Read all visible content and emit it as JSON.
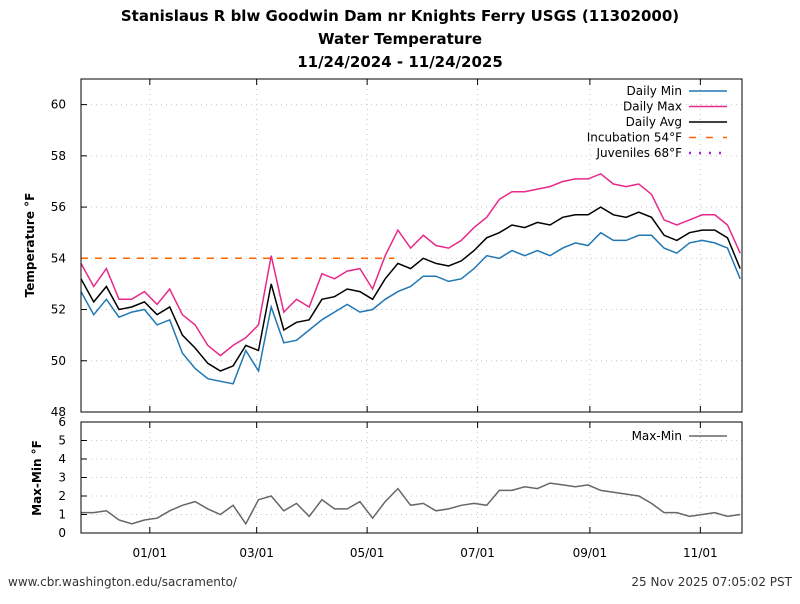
{
  "chart_data": {
    "type": "line",
    "title": [
      "Stanislaus R blw Goodwin Dam nr Knights Ferry USGS (11302000)",
      "Water Temperature",
      "11/24/2024 - 11/24/2025"
    ],
    "x_unit": "days since 11/24/2024",
    "xlim": [
      0,
      365
    ],
    "x_ticks": [
      {
        "day": 38,
        "label": "01/01"
      },
      {
        "day": 97,
        "label": "03/01"
      },
      {
        "day": 158,
        "label": "05/01"
      },
      {
        "day": 219,
        "label": "07/01"
      },
      {
        "day": 281,
        "label": "09/01"
      },
      {
        "day": 342,
        "label": "11/01"
      }
    ],
    "panels": [
      {
        "ylabel": "Temperature °F",
        "ylim": [
          48,
          61
        ],
        "y_ticks": [
          "48",
          "50",
          "52",
          "54",
          "56",
          "58",
          "60"
        ],
        "legend_position": "top-right",
        "x": [
          0,
          7,
          14,
          21,
          28,
          35,
          42,
          49,
          56,
          63,
          70,
          77,
          84,
          91,
          98,
          105,
          112,
          119,
          126,
          133,
          140,
          147,
          154,
          161,
          168,
          175,
          182,
          189,
          196,
          203,
          210,
          217,
          224,
          231,
          238,
          245,
          252,
          259,
          266,
          273,
          280,
          287,
          294,
          301,
          308,
          315,
          322,
          329,
          336,
          343,
          350,
          357,
          364
        ],
        "series": [
          {
            "name": "Daily Min",
            "color": "#1f77b4",
            "style": "solid",
            "values": [
              52.7,
              51.8,
              52.4,
              51.7,
              51.9,
              52.0,
              51.4,
              51.6,
              50.3,
              49.7,
              49.3,
              49.2,
              49.1,
              50.4,
              49.6,
              52.1,
              50.7,
              50.8,
              51.2,
              51.6,
              51.9,
              52.2,
              51.9,
              52.0,
              52.4,
              52.7,
              52.9,
              53.3,
              53.3,
              53.1,
              53.2,
              53.6,
              54.1,
              54.0,
              54.3,
              54.1,
              54.3,
              54.1,
              54.4,
              54.6,
              54.5,
              55.0,
              54.7,
              54.7,
              54.9,
              54.9,
              54.4,
              54.2,
              54.6,
              54.7,
              54.6,
              54.4,
              53.2
            ]
          },
          {
            "name": "Daily Max",
            "color": "#e7298a",
            "style": "solid",
            "values": [
              53.8,
              52.9,
              53.6,
              52.4,
              52.4,
              52.7,
              52.2,
              52.8,
              51.8,
              51.4,
              50.6,
              50.2,
              50.6,
              50.9,
              51.4,
              54.1,
              51.9,
              52.4,
              52.1,
              53.4,
              53.2,
              53.5,
              53.6,
              52.8,
              54.1,
              55.1,
              54.4,
              54.9,
              54.5,
              54.4,
              54.7,
              55.2,
              55.6,
              56.3,
              56.6,
              56.6,
              56.7,
              56.8,
              57.0,
              57.1,
              57.1,
              57.3,
              56.9,
              56.8,
              56.9,
              56.5,
              55.5,
              55.3,
              55.5,
              55.7,
              55.7,
              55.3,
              54.2
            ]
          },
          {
            "name": "Daily Avg",
            "color": "#000000",
            "style": "solid",
            "values": [
              53.2,
              52.3,
              52.9,
              52.0,
              52.1,
              52.3,
              51.8,
              52.1,
              51.0,
              50.5,
              49.9,
              49.6,
              49.8,
              50.6,
              50.4,
              53.0,
              51.2,
              51.5,
              51.6,
              52.4,
              52.5,
              52.8,
              52.7,
              52.4,
              53.2,
              53.8,
              53.6,
              54.0,
              53.8,
              53.7,
              53.9,
              54.3,
              54.8,
              55.0,
              55.3,
              55.2,
              55.4,
              55.3,
              55.6,
              55.7,
              55.7,
              56.0,
              55.7,
              55.6,
              55.8,
              55.6,
              54.9,
              54.7,
              55.0,
              55.1,
              55.1,
              54.8,
              53.6
            ]
          }
        ],
        "thresholds": [
          {
            "name": "Incubation 54°F",
            "value": 54,
            "color": "#ff6600",
            "style": "dashed",
            "x_range": [
              0,
              173
            ]
          },
          {
            "name": "Juveniles 68°F",
            "value": 68,
            "color": "#a020f0",
            "style": "dotted"
          }
        ]
      },
      {
        "ylabel": "Max-Min °F",
        "ylim": [
          0,
          6
        ],
        "y_ticks": [
          "0",
          "1",
          "2",
          "3",
          "4",
          "5",
          "6"
        ],
        "legend_position": "top-right",
        "series": [
          {
            "name": "Max-Min",
            "color": "#666666",
            "style": "solid",
            "values": [
              1.1,
              1.1,
              1.2,
              0.7,
              0.5,
              0.7,
              0.8,
              1.2,
              1.5,
              1.7,
              1.3,
              1.0,
              1.5,
              0.5,
              1.8,
              2.0,
              1.2,
              1.6,
              0.9,
              1.8,
              1.3,
              1.3,
              1.7,
              0.8,
              1.7,
              2.4,
              1.5,
              1.6,
              1.2,
              1.3,
              1.5,
              1.6,
              1.5,
              2.3,
              2.3,
              2.5,
              2.4,
              2.7,
              2.6,
              2.5,
              2.6,
              2.3,
              2.2,
              2.1,
              2.0,
              1.6,
              1.1,
              1.1,
              0.9,
              1.0,
              1.1,
              0.9,
              1.0
            ]
          }
        ]
      }
    ]
  },
  "footer": {
    "source": "www.cbr.washington.edu/sacramento/",
    "timestamp": "25 Nov 2025 07:05:02 PST"
  }
}
